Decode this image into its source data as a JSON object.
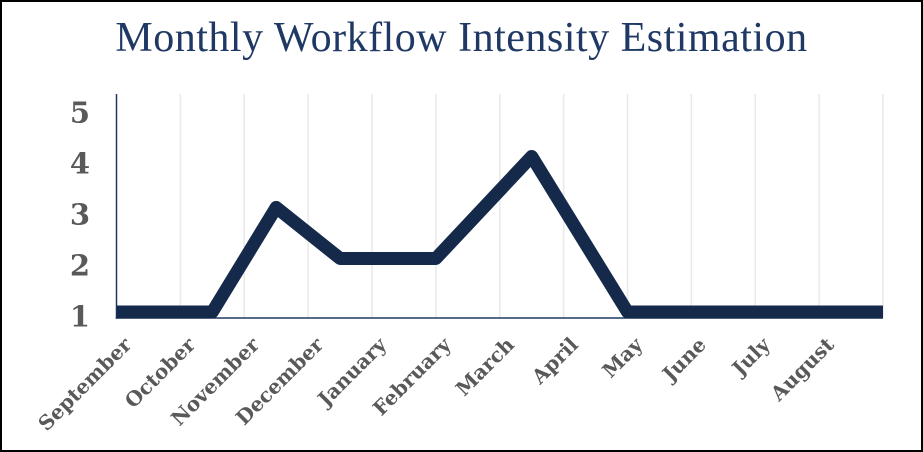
{
  "window": {
    "background": "#FFFFFF",
    "border_color": "#000000"
  },
  "chart_data": {
    "type": "line",
    "title": "Monthly Workflow Intensity Estimation",
    "categories": [
      "September",
      "October",
      "November",
      "December",
      "January",
      "February",
      "March",
      "April",
      "May",
      "June",
      "July",
      "August"
    ],
    "values": [
      1,
      1,
      3.1,
      2.1,
      2.1,
      2.7,
      4.1,
      2,
      1,
      1,
      1,
      1
    ],
    "line_points": [
      [
        0,
        1
      ],
      [
        1.5,
        1
      ],
      [
        2.5,
        3.05
      ],
      [
        3.5,
        2.05
      ],
      [
        5,
        2.05
      ],
      [
        6.5,
        4.05
      ],
      [
        8,
        1
      ],
      [
        12,
        1
      ]
    ],
    "line_points_note": "x in category-width units from the y-axis (centers at k+0.5); y in value units",
    "xlabel": "",
    "ylabel": "",
    "yticks": [
      5,
      4,
      3,
      2,
      1
    ],
    "ylim": [
      1,
      5.4
    ],
    "grid": "vertical-only",
    "legend": "none",
    "colors": {
      "line": "#15294B",
      "title": "#1F3864",
      "axis_labels": "#595959",
      "gridline": "#E9E9EC",
      "axis_line": "#1F3864"
    }
  }
}
